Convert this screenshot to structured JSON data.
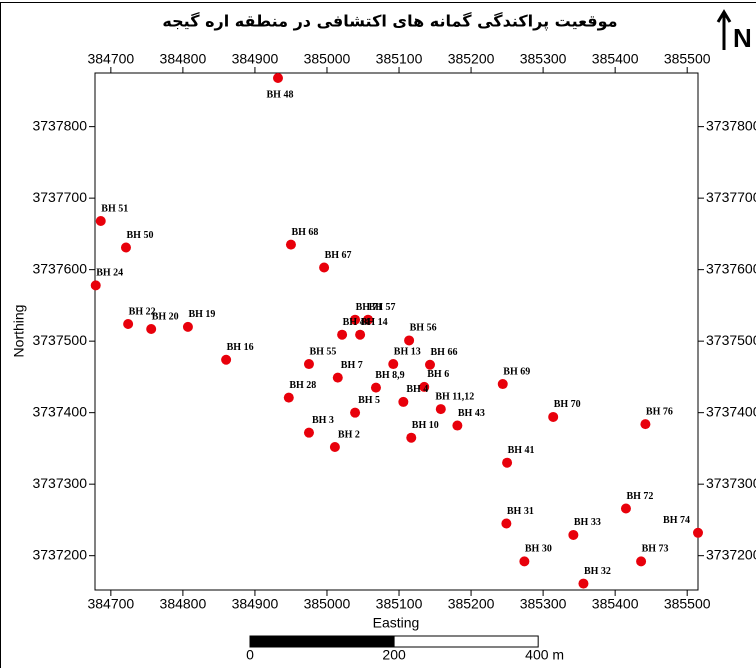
{
  "chart_data": {
    "type": "scatter",
    "title": "موقعیت پراکندگی گمانه های اکتشافی در منطقه اره گیجه",
    "x_label": "Easting",
    "y_label": "Northing",
    "north": "N",
    "point_labels": [
      "BH 48",
      "BH 51",
      "BH 50",
      "BH 24",
      "BH 22",
      "BH 20",
      "BH 19",
      "BH 16",
      "BH 68",
      "BH 67",
      "BH 71",
      "BH 57",
      "BH 44",
      "BH 14",
      "BH 56",
      "BH 55",
      "BH 13",
      "BH 66",
      "BH 7",
      "BH 8,9",
      "BH 6",
      "BH 28",
      "BH 4",
      "BH 5",
      "BH 11,12",
      "BH 43",
      "BH 3",
      "BH 10",
      "BH 2",
      "BH 69",
      "BH 70",
      "BH 76",
      "BH 41",
      "BH 31",
      "BH 72",
      "BH 74",
      "BH 33",
      "BH 30",
      "BH 73",
      "BH 32"
    ],
    "x": [
      384932,
      384686,
      384721,
      384679,
      384724,
      384756,
      384807,
      384860,
      384950,
      384996,
      385039,
      385057,
      385021,
      385046,
      385114,
      384975,
      385092,
      385143,
      385015,
      385068,
      385135,
      384947,
      385106,
      385039,
      385158,
      385181,
      384975,
      385117,
      385011,
      385244,
      385314,
      385442,
      385250,
      385249,
      385415,
      385515,
      385342,
      385274,
      385436,
      385356
    ],
    "series": [
      {
        "color": "#e8000b",
        "values": [
          3737868,
          3737668,
          3737631,
          3737578,
          3737524,
          3737517,
          3737520,
          3737474,
          3737635,
          3737603,
          3737530,
          3737530,
          3737509,
          3737509,
          3737501,
          3737468,
          3737468,
          3737467,
          3737449,
          3737435,
          3737436,
          3737421,
          3737415,
          3737400,
          3737405,
          3737382,
          3737372,
          3737365,
          3737352,
          3737440,
          3737394,
          3737384,
          3737330,
          3737245,
          3737266,
          3737232,
          3737229,
          3737192,
          3737192,
          3737161
        ]
      }
    ],
    "xlim": [
      384678,
      385515
    ],
    "ylim": [
      3737152,
      3737875
    ],
    "xticks": [
      384700,
      384800,
      384900,
      385000,
      385100,
      385200,
      385300,
      385400,
      385500
    ],
    "yticks": [
      3737200,
      3737300,
      3737400,
      3737500,
      3737600,
      3737700,
      3737800
    ],
    "scale_bar": {
      "ticks": [
        0,
        200,
        {
          "value": 400,
          "label": "400 m"
        }
      ]
    }
  }
}
